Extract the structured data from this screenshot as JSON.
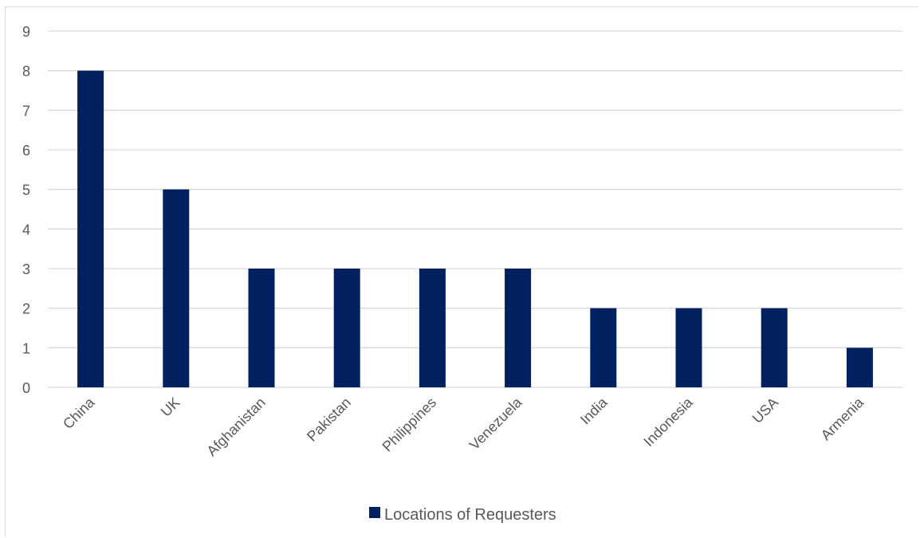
{
  "chart_data": {
    "type": "bar",
    "categories": [
      "China",
      "UK",
      "Afghanistan",
      "Pakistan",
      "Philippines",
      "Venezuela",
      "India",
      "Indonesia",
      "USA",
      "Armenia"
    ],
    "series": [
      {
        "name": "Locations of Requesters",
        "values": [
          8,
          5,
          3,
          3,
          3,
          3,
          2,
          2,
          2,
          1
        ],
        "color": "#002060"
      }
    ],
    "title": "",
    "xlabel": "",
    "ylabel": "",
    "ylim": [
      0,
      9
    ],
    "yticks": [
      0,
      1,
      2,
      3,
      4,
      5,
      6,
      7,
      8,
      9
    ],
    "grid": true,
    "legend_position": "bottom",
    "gridline_color": "#d9d9d9",
    "text_color": "#595959"
  }
}
